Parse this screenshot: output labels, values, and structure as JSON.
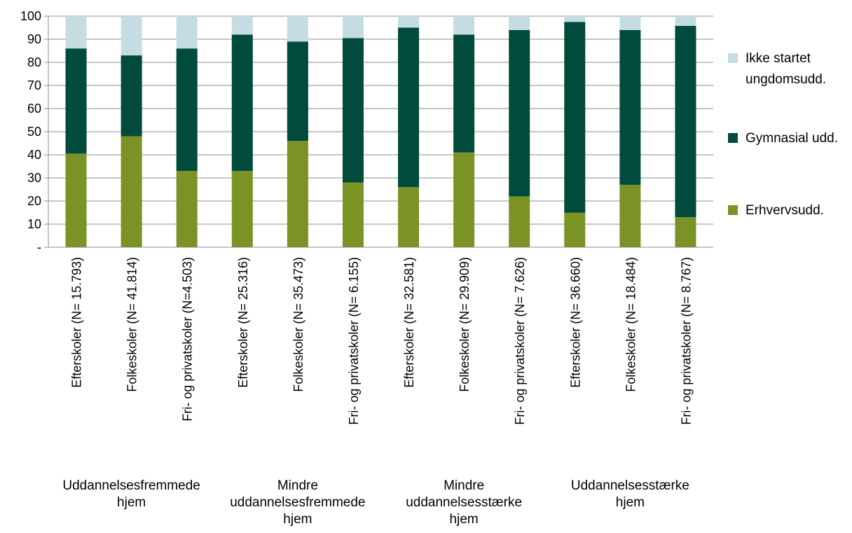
{
  "chart_data": {
    "type": "bar",
    "stacked": true,
    "title": "",
    "xlabel": "",
    "ylabel": "",
    "ylim": [
      0,
      100
    ],
    "yticks": [
      0,
      10,
      20,
      30,
      40,
      50,
      60,
      70,
      80,
      90,
      100
    ],
    "ytick_labels": [
      "-",
      "10",
      "20",
      "30",
      "40",
      "50",
      "60",
      "70",
      "80",
      "90",
      "100"
    ],
    "grid": true,
    "legend_position": "right",
    "categories": [
      "Efterskoler (N= 15.793)",
      "Folkeskoler (N= 41.814)",
      "Fri- og privatskoler (N=4.503)",
      "Efterskoler (N= 25.316)",
      "Folkeskoler (N= 35.473)",
      "Fri- og privatskoler (N= 6.155)",
      "Efterskoler (N= 32.581)",
      "Folkeskoler (N= 29.909)",
      "Fri- og privatskoler (N= 7.626)",
      "Efterskoler (N= 36.660)",
      "Folkeskoler (N= 18.484)",
      "Fri- og privatskoler (N= 8.767)"
    ],
    "groups": [
      {
        "label_lines": [
          "Uddannelsesfremmede",
          "hjem"
        ],
        "categories": [
          0,
          1,
          2
        ]
      },
      {
        "label_lines": [
          "Mindre",
          "uddannelsesfremmede",
          "hjem"
        ],
        "categories": [
          3,
          4,
          5
        ]
      },
      {
        "label_lines": [
          "Mindre",
          "uddannelsesstærke",
          "hjem"
        ],
        "categories": [
          6,
          7,
          8
        ]
      },
      {
        "label_lines": [
          "Uddannelsesstærke",
          "hjem"
        ],
        "categories": [
          9,
          10,
          11
        ]
      }
    ],
    "series": [
      {
        "name": "Erhvervsudd.",
        "color": "#7b9225",
        "values": [
          40.5,
          48,
          33,
          33,
          46,
          28,
          26,
          41,
          22,
          15,
          27,
          13
        ]
      },
      {
        "name": "Gymnasial udd.",
        "color": "#004b3c",
        "values": [
          45.5,
          35,
          53,
          59,
          43,
          62.5,
          69,
          51,
          72,
          82.5,
          67,
          82.8
        ]
      },
      {
        "name": "Ikke startet ungdomsudd.",
        "color": "#c6dce3",
        "values": [
          14,
          17,
          14,
          8,
          11,
          9.5,
          5,
          8,
          6,
          2.5,
          6,
          4.2
        ]
      }
    ],
    "legend": [
      {
        "series": 2,
        "label_lines": [
          "Ikke startet",
          "ungdomsudd."
        ]
      },
      {
        "series": 1,
        "label_lines": [
          "Gymnasial udd."
        ]
      },
      {
        "series": 0,
        "label_lines": [
          "Erhvervsudd."
        ]
      }
    ]
  }
}
